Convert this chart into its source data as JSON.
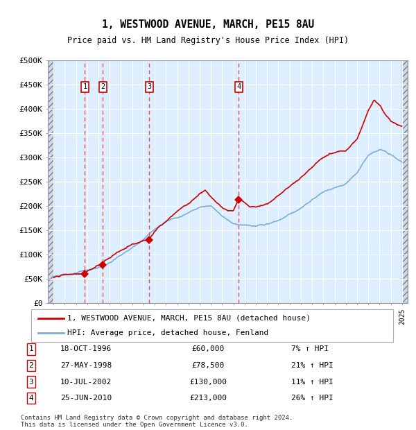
{
  "title": "1, WESTWOOD AVENUE, MARCH, PE15 8AU",
  "subtitle": "Price paid vs. HM Land Registry's House Price Index (HPI)",
  "ylim": [
    0,
    500000
  ],
  "yticks": [
    0,
    50000,
    100000,
    150000,
    200000,
    250000,
    300000,
    350000,
    400000,
    450000,
    500000
  ],
  "ytick_labels": [
    "£0",
    "£50K",
    "£100K",
    "£150K",
    "£200K",
    "£250K",
    "£300K",
    "£350K",
    "£400K",
    "£450K",
    "£500K"
  ],
  "xlim_start": 1993.5,
  "xlim_end": 2025.5,
  "hatch_left_end": 1994.0,
  "hatch_right_start": 2025.0,
  "sale_dates": [
    1996.79,
    1998.4,
    2002.52,
    2010.48
  ],
  "sale_prices": [
    60000,
    78500,
    130000,
    213000
  ],
  "sale_labels": [
    "1",
    "2",
    "3",
    "4"
  ],
  "sale_date_labels": [
    "18-OCT-1996",
    "27-MAY-1998",
    "10-JUL-2002",
    "25-JUN-2010"
  ],
  "sale_price_labels": [
    "£60,000",
    "£78,500",
    "£130,000",
    "£213,000"
  ],
  "sale_hpi_labels": [
    "7% ↑ HPI",
    "21% ↑ HPI",
    "11% ↑ HPI",
    "26% ↑ HPI"
  ],
  "line_color_red": "#cc0000",
  "line_color_blue": "#7aaddc",
  "marker_color": "#cc0000",
  "dashed_line_color": "#ee3333",
  "legend1": "1, WESTWOOD AVENUE, MARCH, PE15 8AU (detached house)",
  "legend2": "HPI: Average price, detached house, Fenland",
  "footer1": "Contains HM Land Registry data © Crown copyright and database right 2024.",
  "footer2": "This data is licensed under the Open Government Licence v3.0.",
  "background_plot": "#ddeeff",
  "background_fig": "#ffffff",
  "grid_color": "#ffffff",
  "hpi_color_bg": "#ccd8ee"
}
